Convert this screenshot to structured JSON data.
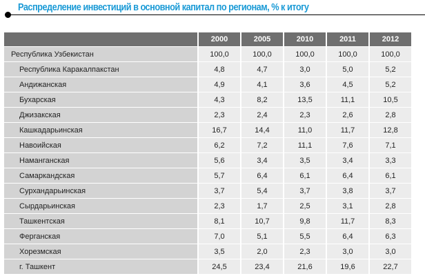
{
  "title": "Распределение инвестиций в основной капитал по регионам, % к итогу",
  "table": {
    "years": [
      "2000",
      "2005",
      "2010",
      "2011",
      "2012"
    ],
    "rows": [
      {
        "region": "Республика Узбекистан",
        "values": [
          "100,0",
          "100,0",
          "100,0",
          "100,0",
          "100,0"
        ]
      },
      {
        "region": "Республика Каракалпакстан",
        "values": [
          "4,8",
          "4,7",
          "3,0",
          "5,0",
          "5,2"
        ]
      },
      {
        "region": "Андижанская",
        "values": [
          "4,9",
          "4,1",
          "3,6",
          "4,5",
          "5,2"
        ]
      },
      {
        "region": "Бухарская",
        "values": [
          "4,3",
          "8,2",
          "13,5",
          "11,1",
          "10,5"
        ]
      },
      {
        "region": "Джизакская",
        "values": [
          "2,3",
          "2,4",
          "2,3",
          "2,6",
          "2,8"
        ]
      },
      {
        "region": "Кашкадарьинская",
        "values": [
          "16,7",
          "14,4",
          "11,0",
          "11,7",
          "12,8"
        ]
      },
      {
        "region": "Навоийская",
        "values": [
          "6,2",
          "7,2",
          "11,1",
          "7,6",
          "7,1"
        ]
      },
      {
        "region": "Наманганская",
        "values": [
          "5,6",
          "3,4",
          "3,5",
          "3,4",
          "3,3"
        ]
      },
      {
        "region": "Самаркандская",
        "values": [
          "5,7",
          "6,4",
          "6,1",
          "6,4",
          "6,1"
        ]
      },
      {
        "region": "Сурхандарьинская",
        "values": [
          "3,7",
          "5,4",
          "3,7",
          "3,8",
          "3,7"
        ]
      },
      {
        "region": "Сырдарьинская",
        "values": [
          "2,3",
          "1,7",
          "2,5",
          "3,1",
          "2,8"
        ]
      },
      {
        "region": "Ташкентская",
        "values": [
          "8,1",
          "10,7",
          "9,8",
          "11,7",
          "8,3"
        ]
      },
      {
        "region": "Ферганская",
        "values": [
          "7,0",
          "5,1",
          "5,5",
          "6,4",
          "6,3"
        ]
      },
      {
        "region": "Хорезмская",
        "values": [
          "3,5",
          "2,0",
          "2,3",
          "3,0",
          "3,0"
        ]
      },
      {
        "region": "г. Ташкент",
        "values": [
          "24,5",
          "23,4",
          "21,6",
          "19,6",
          "22,7"
        ]
      }
    ]
  }
}
